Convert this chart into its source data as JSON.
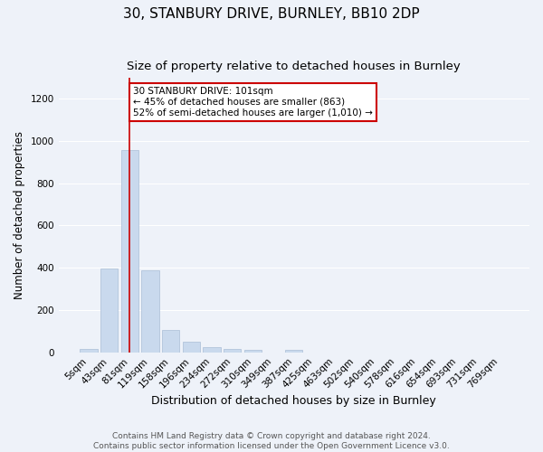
{
  "title": "30, STANBURY DRIVE, BURNLEY, BB10 2DP",
  "subtitle": "Size of property relative to detached houses in Burnley",
  "xlabel": "Distribution of detached houses by size in Burnley",
  "ylabel": "Number of detached properties",
  "categories": [
    "5sqm",
    "43sqm",
    "81sqm",
    "119sqm",
    "158sqm",
    "196sqm",
    "234sqm",
    "272sqm",
    "310sqm",
    "349sqm",
    "387sqm",
    "425sqm",
    "463sqm",
    "502sqm",
    "540sqm",
    "578sqm",
    "616sqm",
    "654sqm",
    "693sqm",
    "731sqm",
    "769sqm"
  ],
  "values": [
    15,
    395,
    955,
    390,
    105,
    50,
    25,
    15,
    12,
    0,
    12,
    0,
    0,
    0,
    0,
    0,
    0,
    0,
    0,
    0,
    0
  ],
  "bar_color": "#c9d9ed",
  "bar_edge_color": "#aabdd6",
  "vline_color": "#cc0000",
  "annotation_text": "30 STANBURY DRIVE: 101sqm\n← 45% of detached houses are smaller (863)\n52% of semi-detached houses are larger (1,010) →",
  "annotation_box_color": "#ffffff",
  "annotation_box_edge": "#cc0000",
  "ylim": [
    0,
    1300
  ],
  "yticks": [
    0,
    200,
    400,
    600,
    800,
    1000,
    1200
  ],
  "footer_text": "Contains HM Land Registry data © Crown copyright and database right 2024.\nContains public sector information licensed under the Open Government Licence v3.0.",
  "background_color": "#eef2f9",
  "grid_color": "#ffffff",
  "title_fontsize": 11,
  "subtitle_fontsize": 9.5,
  "axis_label_fontsize": 8.5,
  "tick_fontsize": 7.5,
  "footer_fontsize": 6.5
}
